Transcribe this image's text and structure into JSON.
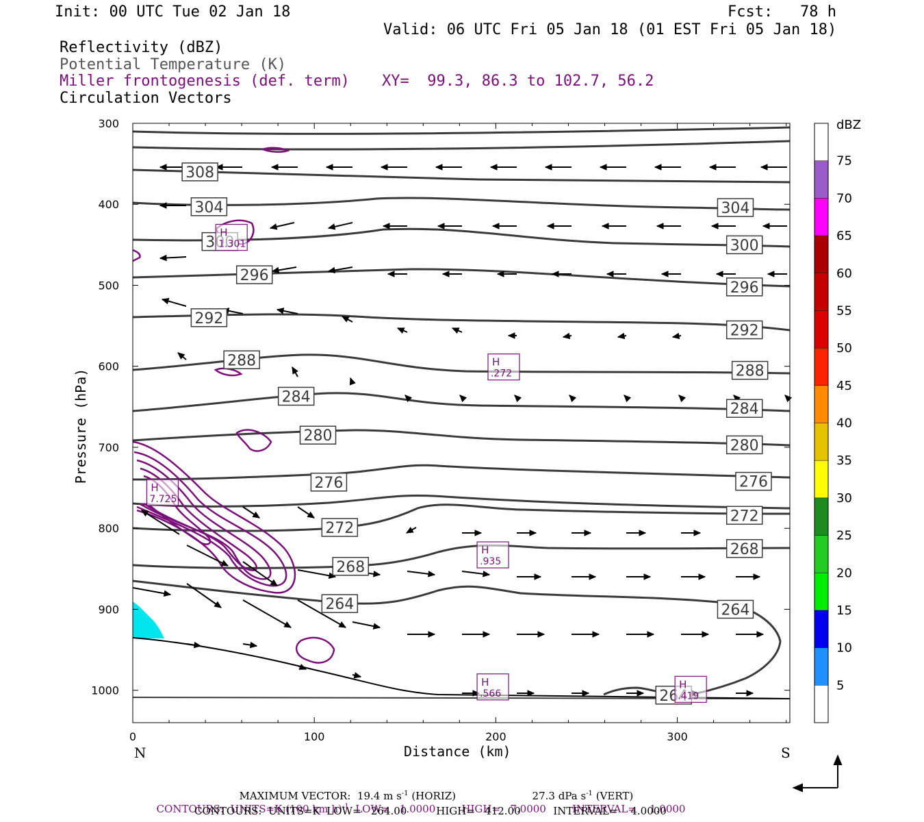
{
  "header": {
    "init": "Init: 00 UTC Tue 02 Jan 18",
    "fcst": "Fcst:   78 h",
    "valid": "Valid: 06 UTC Fri 05 Jan 18 (01 EST Fri 05 Jan 18)",
    "line1": "Reflectivity (dBZ)",
    "line2": "Potential Temperature (K)",
    "line3": "Miller frontogenesis (def. term)",
    "line4": "Circulation Vectors",
    "xy": "XY=  99.3, 86.3 to 102.7, 56.2"
  },
  "chart_data": {
    "type": "cross-section",
    "xlabel": "Distance (km)",
    "ylabel": "Pressure (hPa)",
    "xlim": [
      0,
      362
    ],
    "ylim": [
      1040,
      300
    ],
    "xticks": [
      "0",
      "100",
      "200",
      "300"
    ],
    "xtick_values": [
      0,
      100,
      200,
      300
    ],
    "yticks": [
      "300",
      "400",
      "500",
      "600",
      "700",
      "800",
      "900",
      "1000"
    ],
    "ytick_values": [
      300,
      400,
      500,
      600,
      700,
      800,
      900,
      1000
    ],
    "left_end": "N",
    "right_end": "S",
    "colors": {
      "theta": "#3a3a3a",
      "frontogenesis": "#7a0f7a",
      "reflectivity_5": "#00e5ee"
    },
    "theta_contours": [
      {
        "label": "308",
        "label_x": 37,
        "label_pressure": 360,
        "pressure_at_label": 360
      },
      {
        "label": "304",
        "label_x": 42,
        "label_pressure": 403
      },
      {
        "label": "304",
        "label_x": 332,
        "label_pressure": 404
      },
      {
        "label": "300",
        "label_x": 48,
        "label_pressure": 446
      },
      {
        "label": "300",
        "label_x": 337,
        "label_pressure": 450
      },
      {
        "label": "296",
        "label_x": 67,
        "label_pressure": 487
      },
      {
        "label": "296",
        "label_x": 337,
        "label_pressure": 502
      },
      {
        "label": "292",
        "label_x": 42,
        "label_pressure": 540
      },
      {
        "label": "292",
        "label_x": 337,
        "label_pressure": 555
      },
      {
        "label": "288",
        "label_x": 60,
        "label_pressure": 592
      },
      {
        "label": "288",
        "label_x": 340,
        "label_pressure": 605
      },
      {
        "label": "284",
        "label_x": 90,
        "label_pressure": 637
      },
      {
        "label": "284",
        "label_x": 337,
        "label_pressure": 652
      },
      {
        "label": "280",
        "label_x": 102,
        "label_pressure": 685
      },
      {
        "label": "280",
        "label_x": 337,
        "label_pressure": 697
      },
      {
        "label": "276",
        "label_x": 108,
        "label_pressure": 743
      },
      {
        "label": "276",
        "label_x": 342,
        "label_pressure": 742
      },
      {
        "label": "272",
        "label_x": 114,
        "label_pressure": 799
      },
      {
        "label": "272",
        "label_x": 337,
        "label_pressure": 784
      },
      {
        "label": "268",
        "label_x": 120,
        "label_pressure": 847
      },
      {
        "label": "268",
        "label_x": 337,
        "label_pressure": 825
      },
      {
        "label": "264",
        "label_x": 114,
        "label_pressure": 893
      },
      {
        "label": "264",
        "label_x": 332,
        "label_pressure": 900
      },
      {
        "label": "264",
        "label_x": 298,
        "label_pressure": 1006
      }
    ],
    "frontogenesis_maxima": [
      {
        "label": "H",
        "value": "1.301",
        "x": 54,
        "pressure": 440
      },
      {
        "label": "H",
        "value": ".272",
        "x": 204,
        "pressure": 600
      },
      {
        "label": "H",
        "value": "7.725",
        "x": 16,
        "pressure": 755
      },
      {
        "label": "H",
        "value": ".935",
        "x": 198,
        "pressure": 832
      },
      {
        "label": "H",
        "value": ".566",
        "x": 198,
        "pressure": 995
      },
      {
        "label": "H",
        "value": ".419",
        "x": 307,
        "pressure": 998
      }
    ],
    "colorbar": {
      "title": "dBZ",
      "labels": [
        "5",
        "10",
        "15",
        "20",
        "25",
        "30",
        "35",
        "40",
        "45",
        "50",
        "55",
        "60",
        "65",
        "70",
        "75"
      ],
      "colors": [
        "#00e5ee",
        "#1e90ff",
        "#0000ee",
        "#00ee00",
        "#22cc22",
        "#1e8b1e",
        "#ffff00",
        "#e6c300",
        "#ff8c00",
        "#ff2400",
        "#dd0000",
        "#c40000",
        "#aa0000",
        "#ff00ff",
        "#9a5ac8"
      ]
    }
  },
  "footer": {
    "max_vector": "MAXIMUM VECTOR:  19.4 m s",
    "max_vector_exp": "-1",
    "max_vector_h": "(HORIZ)",
    "vert": "27.3 dPa s",
    "vert_exp": "-1",
    "vert_v": "(VERT)",
    "contours_purple_a": "CONTOURS:  UNITS=K (100 km h)",
    "contours_purple_exp": "-1",
    "contours_purple_b": "LOW=   1.0000        HIGH=   7.0000        INTERVAL=    1.0000",
    "contours_black": "CONTOURS:  UNITS=K  LOW=   264.00         HIGH=   412.00          INTERVAL=    4.0000"
  }
}
